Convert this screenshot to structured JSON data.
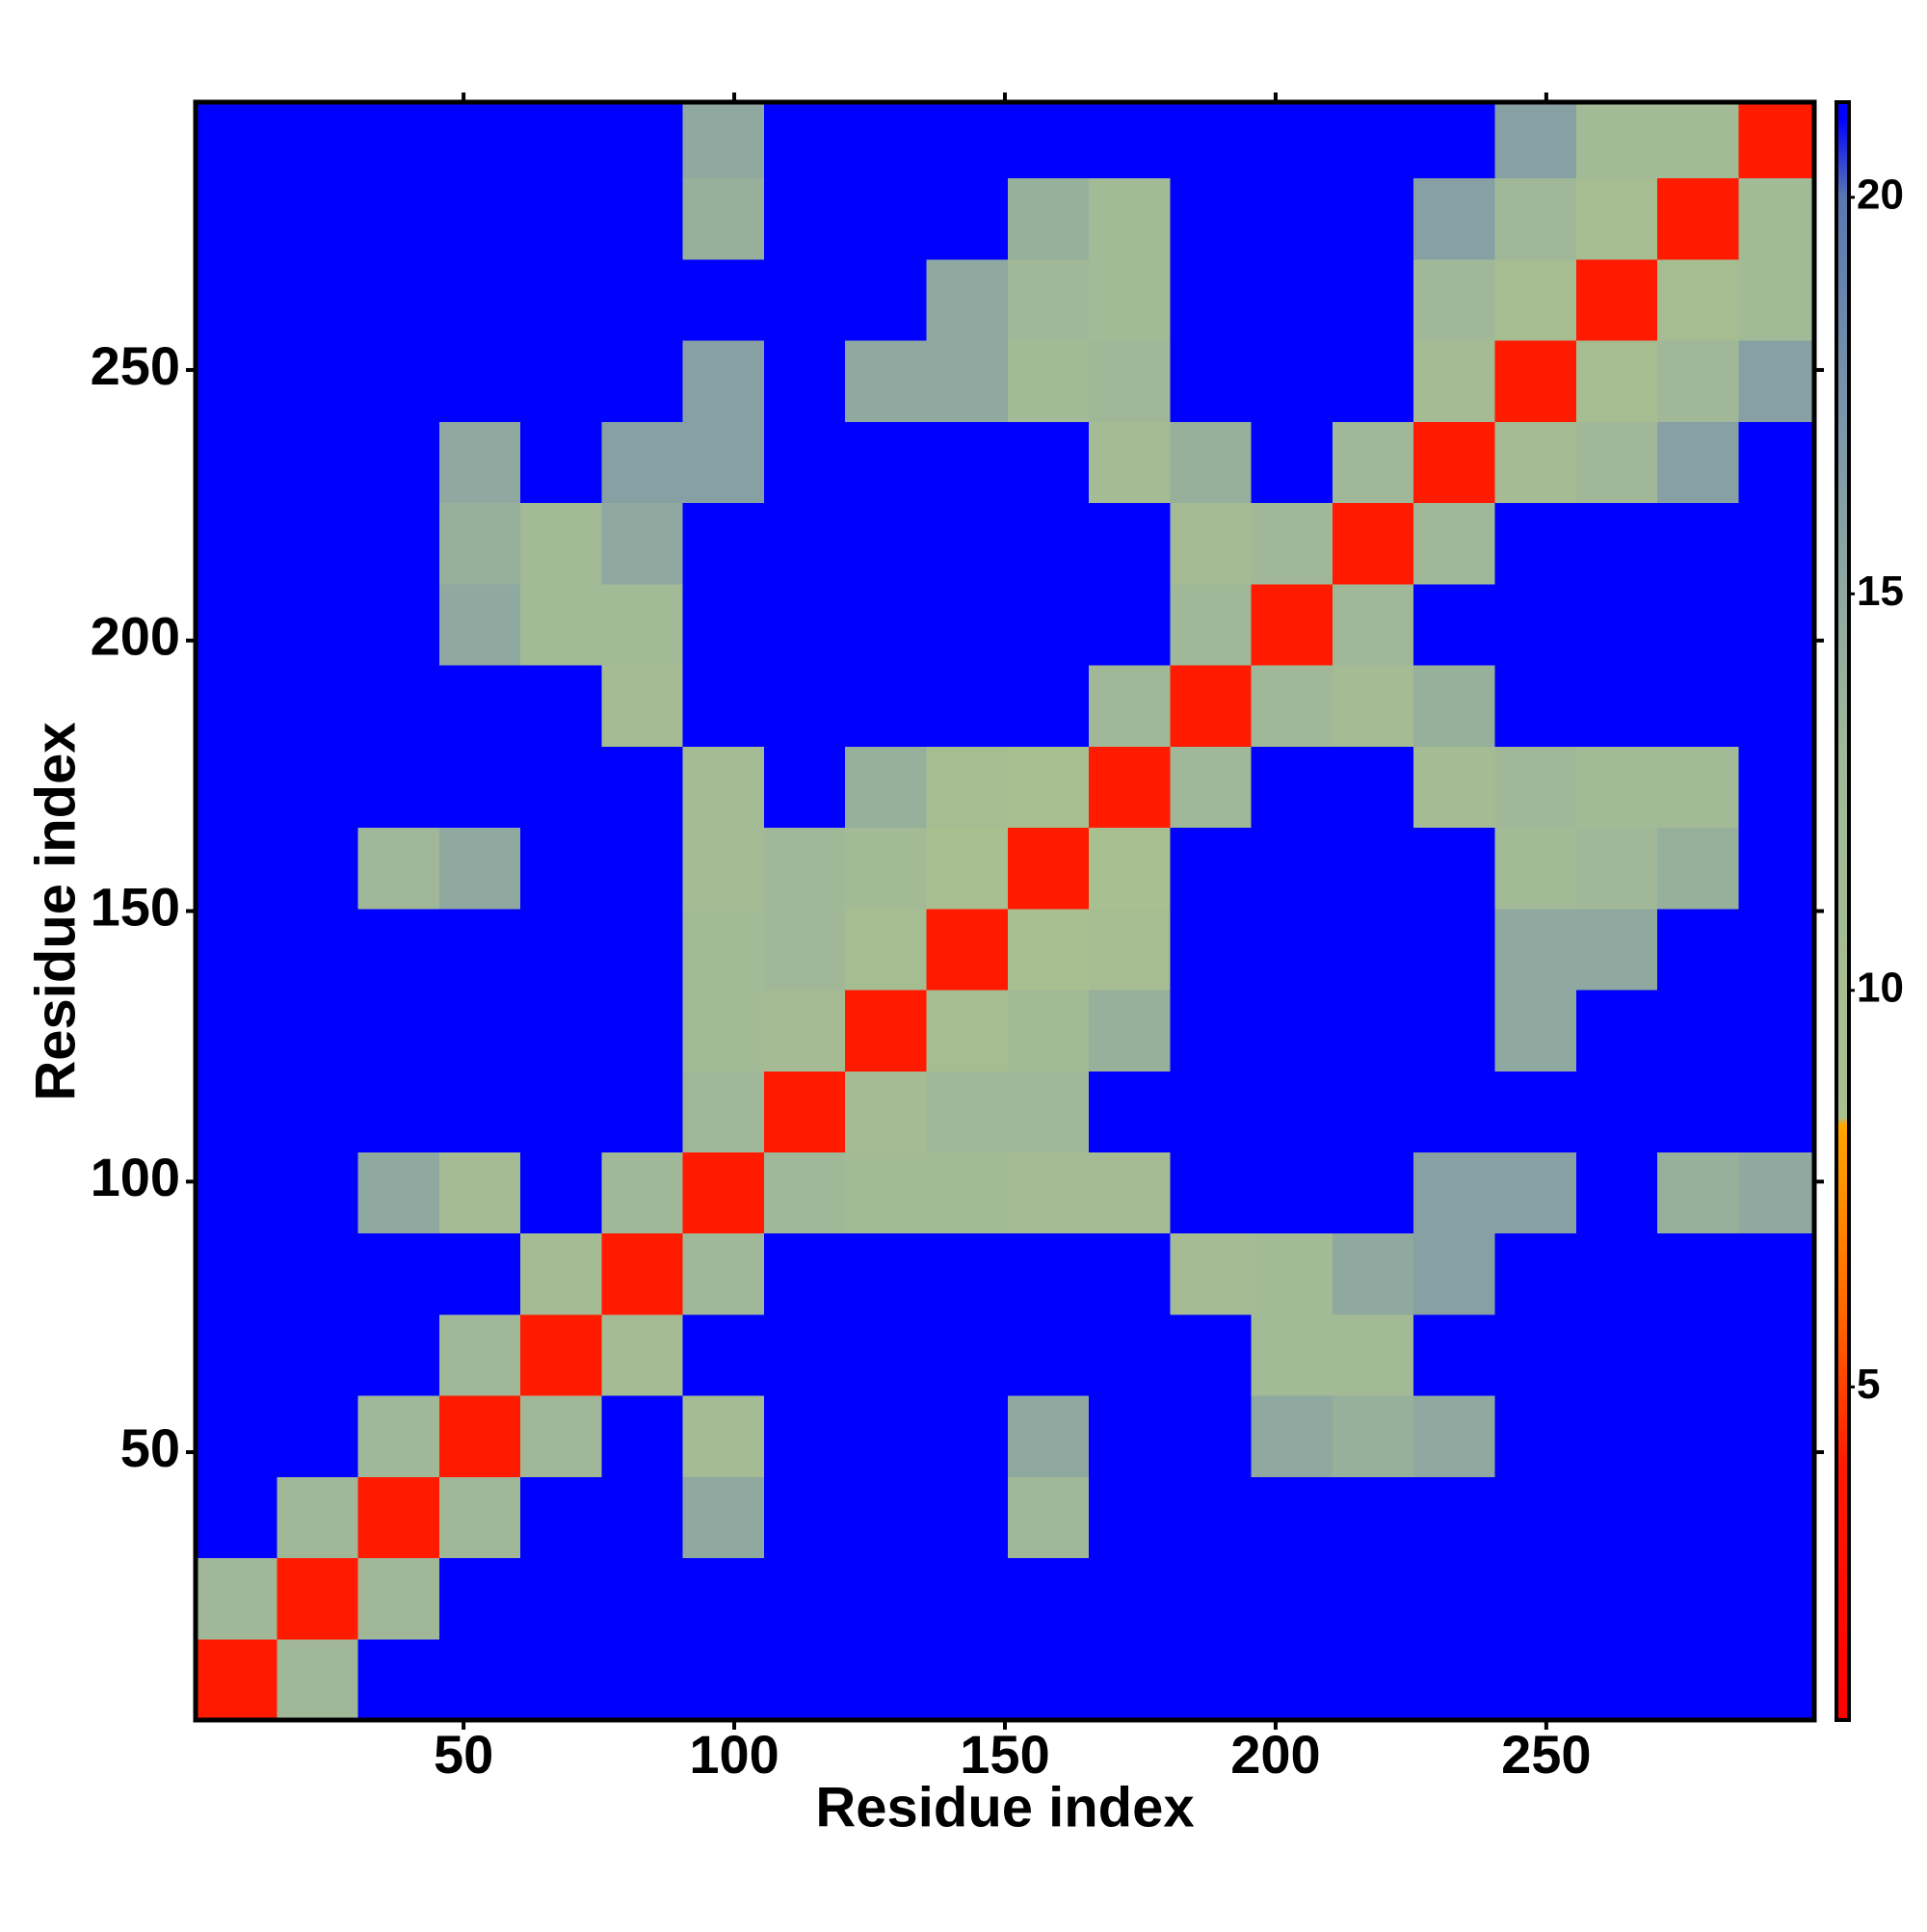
{
  "chart_data": {
    "type": "heatmap",
    "xlabel": "Residue index",
    "ylabel": "Residue index",
    "xlim": [
      0.5,
      299.5
    ],
    "ylim": [
      0.5,
      299.5
    ],
    "xticks": [
      50,
      100,
      150,
      200,
      250
    ],
    "yticks": [
      50,
      100,
      150,
      200,
      250
    ],
    "xbins": [
      0.5,
      15.5,
      30.5,
      45.5,
      60.5,
      75.5,
      90.5,
      105.5,
      120.5,
      135.5,
      150.5,
      165.5,
      180.5,
      195.5,
      210.5,
      225.5,
      240.5,
      255.5,
      270.5,
      285.5,
      299.5
    ],
    "ybins": [
      0.5,
      15.5,
      30.5,
      45.5,
      60.5,
      75.5,
      90.5,
      105.5,
      120.5,
      135.5,
      150.5,
      165.5,
      180.5,
      195.5,
      210.5,
      225.5,
      240.5,
      255.5,
      270.5,
      285.5,
      299.5
    ],
    "z": [
      [
        4,
        13,
        21,
        21,
        21,
        21,
        21,
        21,
        21,
        21,
        21,
        21,
        21,
        21,
        21,
        21,
        21,
        21,
        21,
        21
      ],
      [
        13,
        4,
        13,
        21,
        21,
        21,
        21,
        21,
        21,
        21,
        21,
        21,
        21,
        21,
        21,
        21,
        21,
        21,
        21,
        21
      ],
      [
        21,
        13,
        4,
        13,
        21,
        21,
        15,
        21,
        21,
        21,
        13,
        21,
        21,
        21,
        21,
        21,
        21,
        21,
        21,
        21
      ],
      [
        21,
        21,
        13,
        4,
        13,
        21,
        11,
        21,
        21,
        21,
        15,
        21,
        21,
        15,
        14,
        15,
        21,
        21,
        21,
        21
      ],
      [
        21,
        21,
        21,
        13,
        4,
        11,
        21,
        21,
        21,
        21,
        21,
        21,
        21,
        12,
        12,
        21,
        21,
        21,
        21,
        21
      ],
      [
        21,
        21,
        21,
        21,
        11,
        4,
        13,
        21,
        21,
        21,
        21,
        21,
        11,
        12,
        15,
        16,
        21,
        21,
        21,
        21
      ],
      [
        21,
        21,
        15,
        11,
        21,
        13,
        4,
        13,
        12,
        12,
        11,
        11,
        21,
        21,
        21,
        16,
        16,
        21,
        14,
        15
      ],
      [
        21,
        21,
        21,
        21,
        21,
        21,
        13,
        4,
        11,
        13,
        13,
        21,
        21,
        21,
        21,
        21,
        21,
        21,
        21,
        21
      ],
      [
        21,
        21,
        21,
        21,
        21,
        21,
        12,
        11,
        4,
        10,
        12,
        14,
        21,
        21,
        21,
        21,
        15,
        21,
        21,
        21
      ],
      [
        21,
        21,
        21,
        21,
        21,
        21,
        12,
        13,
        10,
        4,
        9,
        10,
        21,
        21,
        21,
        21,
        15,
        15,
        21,
        21
      ],
      [
        21,
        21,
        13,
        15,
        21,
        21,
        11,
        13,
        12,
        9,
        4,
        9,
        21,
        21,
        21,
        21,
        12,
        13,
        14,
        21
      ],
      [
        21,
        21,
        21,
        21,
        21,
        21,
        11,
        21,
        14,
        10,
        9,
        4,
        13,
        21,
        21,
        11,
        13,
        12,
        12,
        21
      ],
      [
        21,
        21,
        21,
        21,
        21,
        11,
        21,
        21,
        21,
        21,
        21,
        13,
        4,
        13,
        11,
        14,
        21,
        21,
        21,
        21
      ],
      [
        21,
        21,
        21,
        15,
        12,
        12,
        21,
        21,
        21,
        21,
        21,
        21,
        13,
        4,
        13,
        21,
        21,
        21,
        21,
        21
      ],
      [
        21,
        21,
        21,
        14,
        12,
        15,
        21,
        21,
        21,
        21,
        21,
        21,
        11,
        13,
        4,
        13,
        21,
        21,
        21,
        21
      ],
      [
        21,
        21,
        21,
        15,
        21,
        16,
        16,
        21,
        21,
        21,
        21,
        11,
        14,
        21,
        13,
        4,
        11,
        13,
        16,
        21
      ],
      [
        21,
        21,
        21,
        21,
        21,
        21,
        16,
        21,
        15,
        15,
        12,
        13,
        21,
        21,
        21,
        11,
        4,
        10,
        13,
        16
      ],
      [
        21,
        21,
        21,
        21,
        21,
        21,
        21,
        21,
        21,
        15,
        13,
        12,
        21,
        21,
        21,
        13,
        10,
        4,
        10,
        12
      ],
      [
        21,
        21,
        21,
        21,
        21,
        21,
        14,
        21,
        21,
        21,
        14,
        12,
        21,
        21,
        21,
        16,
        13,
        10,
        4,
        12
      ],
      [
        21,
        21,
        21,
        21,
        21,
        21,
        15,
        21,
        21,
        21,
        21,
        21,
        21,
        21,
        21,
        21,
        16,
        12,
        12,
        4
      ]
    ],
    "clim": [
      0.8,
      21.2
    ],
    "cticks": [
      5,
      10,
      15,
      20
    ],
    "colorscale": [
      {
        "value": 0.8,
        "color": "#ff0000"
      },
      {
        "value": 4,
        "color": "#ff1a00"
      },
      {
        "value": 6,
        "color": "#ff6a00"
      },
      {
        "value": 8.3,
        "color": "#ffa500"
      },
      {
        "value": 8.4,
        "color": "#a9c08f"
      },
      {
        "value": 13,
        "color": "#a0b898"
      },
      {
        "value": 17,
        "color": "#7d98a8"
      },
      {
        "value": 20,
        "color": "#5a78b0"
      },
      {
        "value": 21,
        "color": "#0000ff"
      }
    ]
  }
}
